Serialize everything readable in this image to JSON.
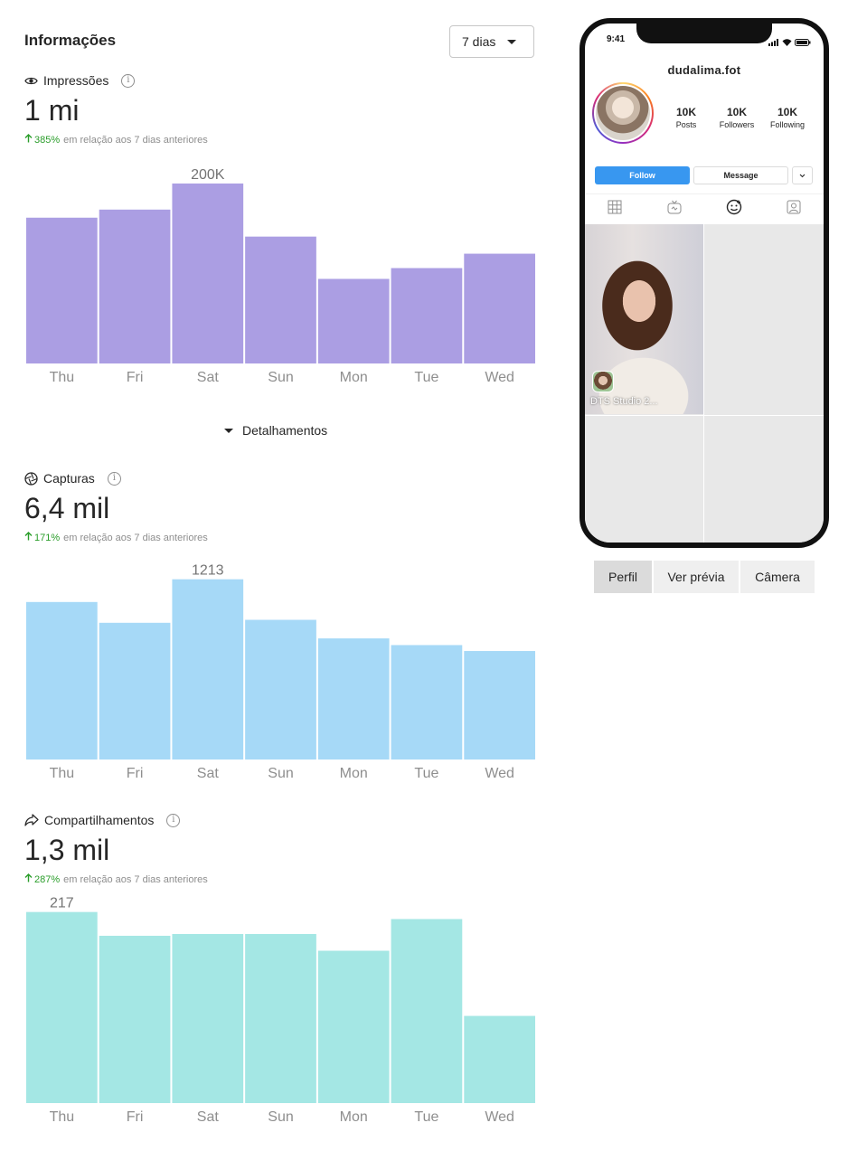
{
  "header": {
    "title": "Informações",
    "range": "7 dias"
  },
  "colors": {
    "impressions_bar": "#ab9ee3",
    "captures_bar": "#a6d9f7",
    "shares_bar": "#a4e7e4",
    "positive": "#2a9d2a",
    "follow": "#3897f0"
  },
  "metrics": [
    {
      "label": "Impressões",
      "icon": "eye-icon",
      "value": "1 mi",
      "change_pct": "385%",
      "change_text": "em relação aos 7 dias anteriores"
    },
    {
      "label": "Capturas",
      "icon": "camera-shutter-icon",
      "value": "6,4 mil",
      "change_pct": "171%",
      "change_text": "em relação aos 7 dias anteriores"
    },
    {
      "label": "Compartilhamentos",
      "icon": "share-arrow-icon",
      "value": "1,3 mil",
      "change_pct": "287%",
      "change_text": "em relação aos 7 dias anteriores"
    }
  ],
  "details_label": "Detalhamentos",
  "chart_data": [
    {
      "type": "bar",
      "categories": [
        "Thu",
        "Fri",
        "Sat",
        "Sun",
        "Mon",
        "Tue",
        "Wed"
      ],
      "values": [
        162,
        171,
        200,
        141,
        94,
        106,
        122
      ],
      "peak_label": "200K",
      "peak_index": 2,
      "ylim": [
        0,
        213
      ]
    },
    {
      "type": "bar",
      "categories": [
        "Thu",
        "Fri",
        "Sat",
        "Sun",
        "Mon",
        "Tue",
        "Wed"
      ],
      "values": [
        1060,
        920,
        1213,
        940,
        815,
        770,
        730
      ],
      "peak_label": "1213",
      "peak_index": 2,
      "ylim": [
        0,
        1290
      ]
    },
    {
      "type": "bar",
      "categories": [
        "Thu",
        "Fri",
        "Sat",
        "Sun",
        "Mon",
        "Tue",
        "Wed"
      ],
      "values": [
        217,
        190,
        192,
        192,
        173,
        209,
        99
      ],
      "peak_label": "217",
      "peak_index": 0,
      "ylim": [
        0,
        230
      ]
    }
  ],
  "phone": {
    "time": "9:41",
    "handle": "dudalima.fot",
    "stats": [
      {
        "num": "10K",
        "label": "Posts"
      },
      {
        "num": "10K",
        "label": "Followers"
      },
      {
        "num": "10K",
        "label": "Following"
      }
    ],
    "follow_label": "Follow",
    "message_label": "Message",
    "photo_caption": "DTS Studio 2..."
  },
  "segmented": [
    {
      "label": "Perfil",
      "active": true
    },
    {
      "label": "Ver prévia",
      "active": false
    },
    {
      "label": "Câmera",
      "active": false
    }
  ]
}
